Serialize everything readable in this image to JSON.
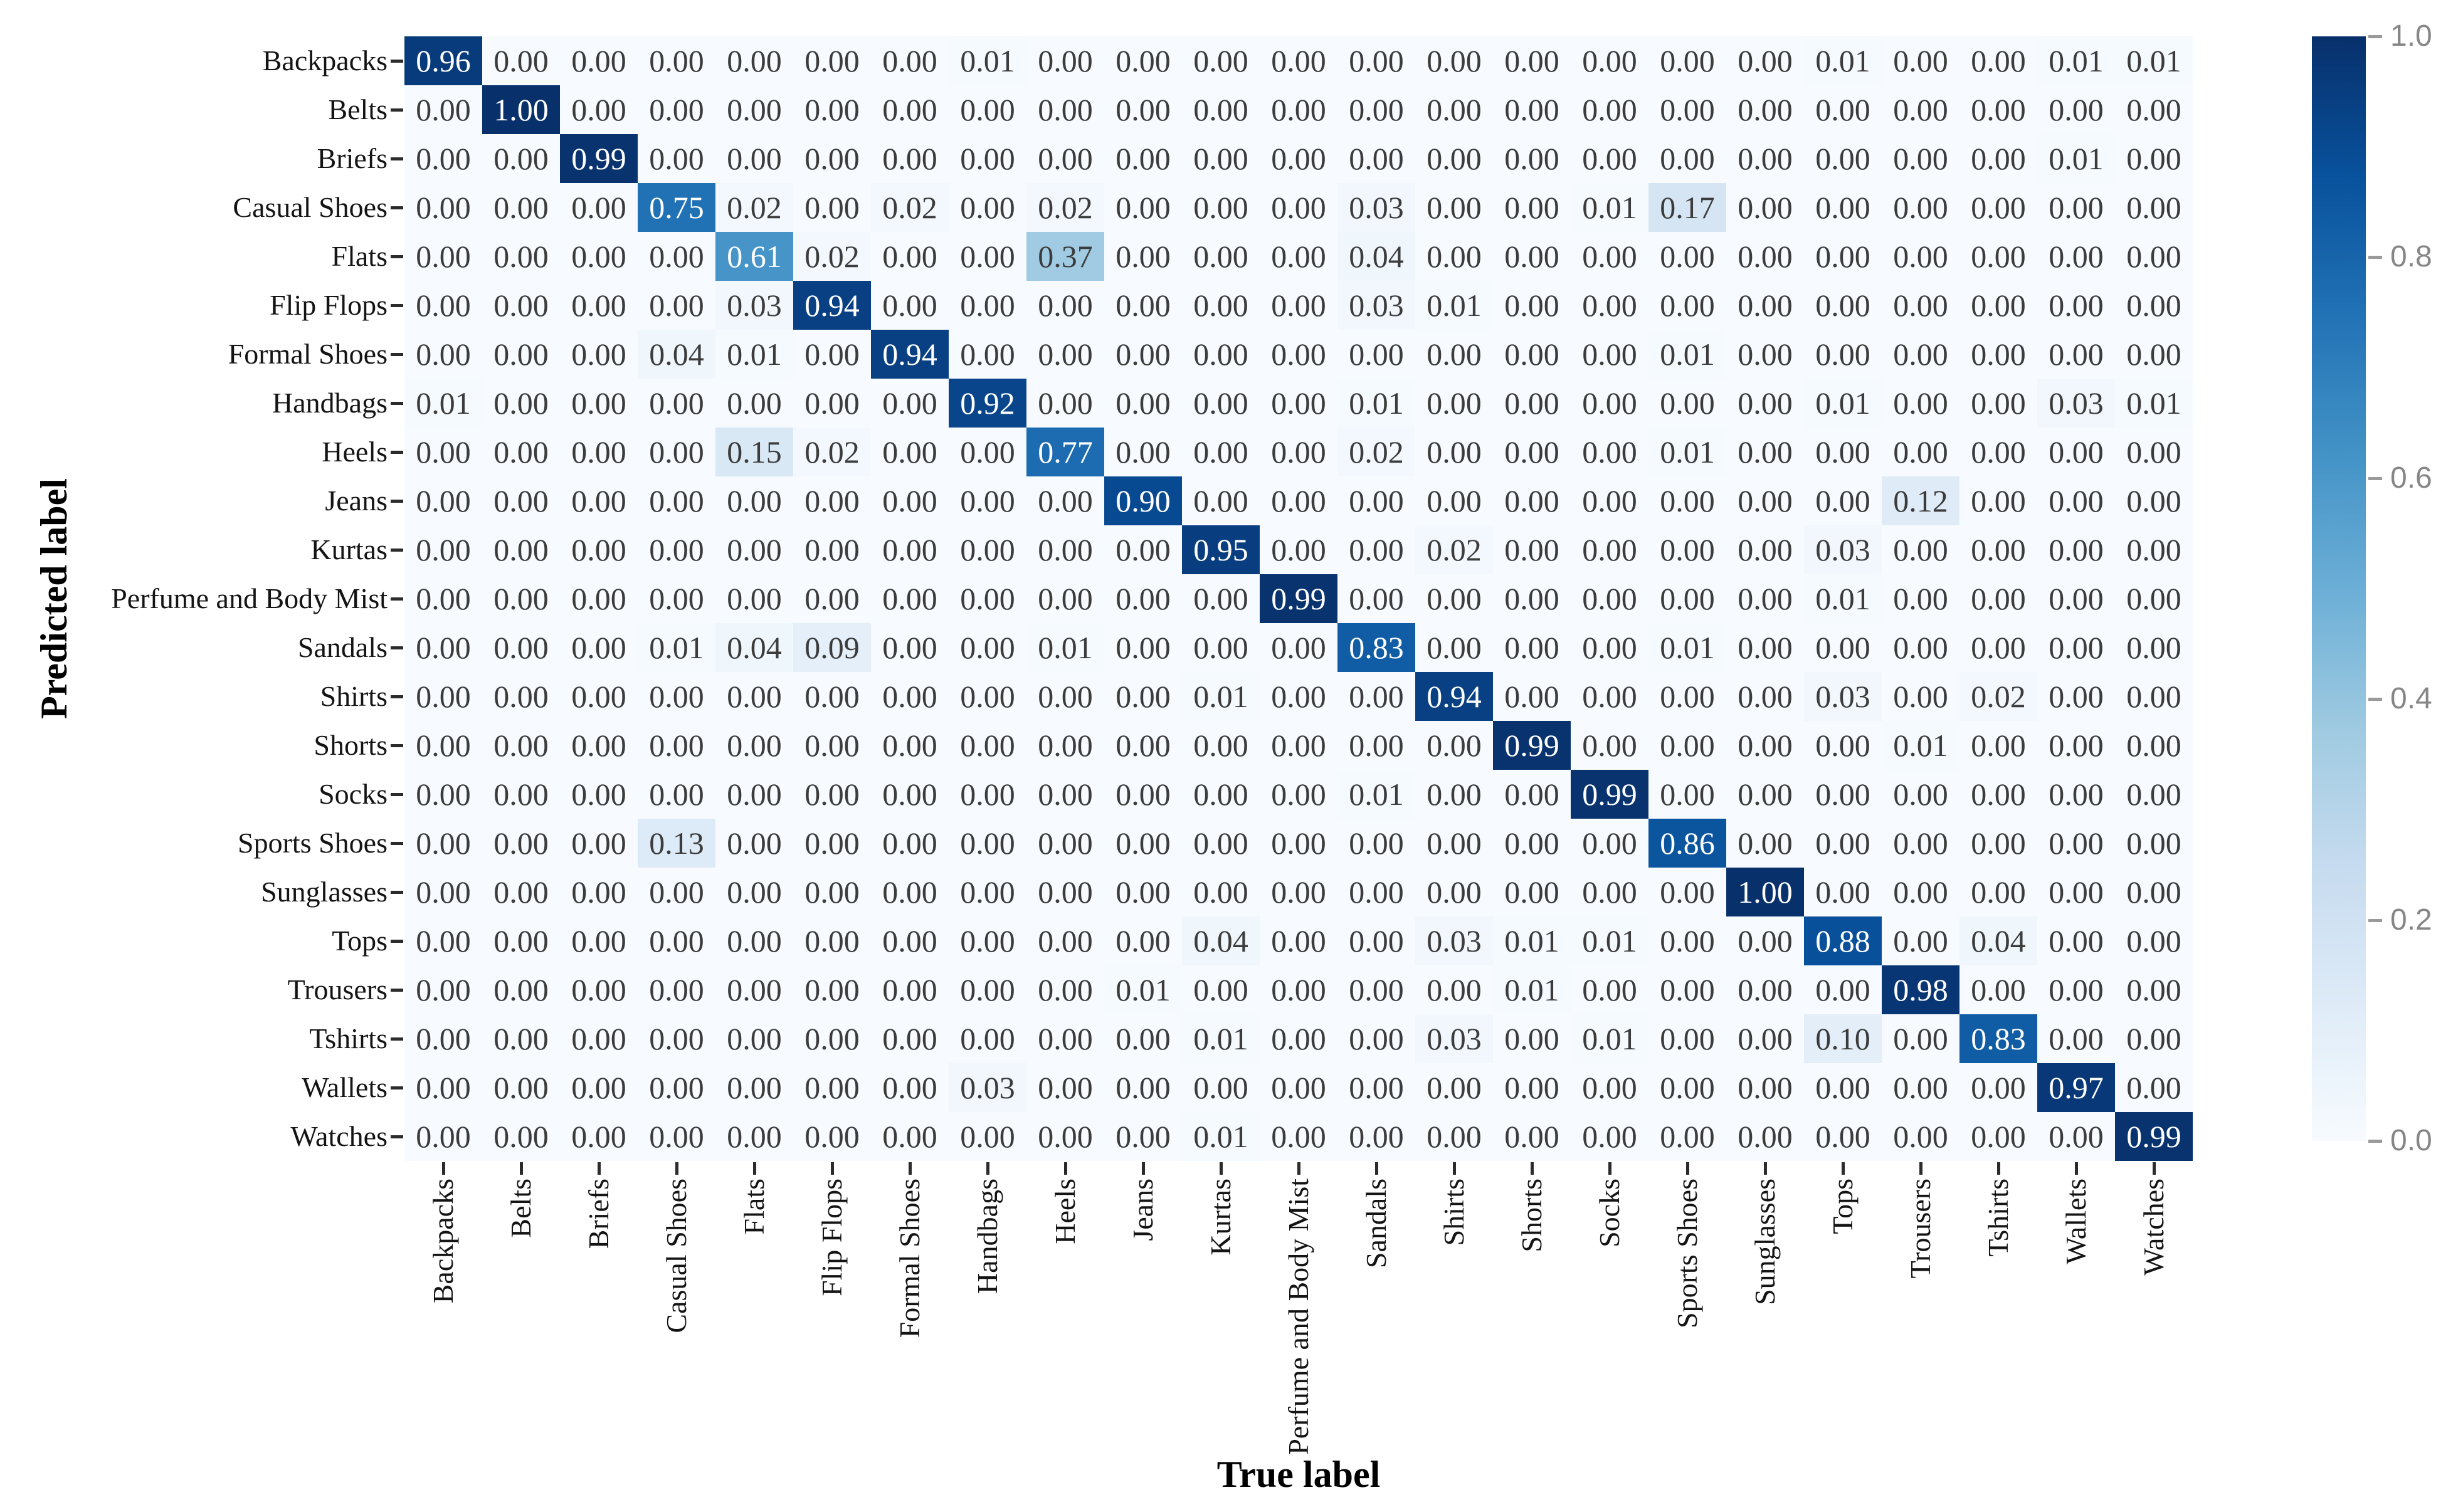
{
  "chart_data": {
    "type": "heatmap",
    "title": "",
    "xlabel": "True label",
    "ylabel": "Predicted label",
    "x_labels": [
      "Backpacks",
      "Belts",
      "Briefs",
      "Casual Shoes",
      "Flats",
      "Flip Flops",
      "Formal Shoes",
      "Handbags",
      "Heels",
      "Jeans",
      "Kurtas",
      "Perfume and Body Mist",
      "Sandals",
      "Shirts",
      "Shorts",
      "Socks",
      "Sports Shoes",
      "Sunglasses",
      "Tops",
      "Trousers",
      "Tshirts",
      "Wallets",
      "Watches"
    ],
    "y_labels": [
      "Backpacks",
      "Belts",
      "Briefs",
      "Casual Shoes",
      "Flats",
      "Flip Flops",
      "Formal Shoes",
      "Handbags",
      "Heels",
      "Jeans",
      "Kurtas",
      "Perfume and Body Mist",
      "Sandals",
      "Shirts",
      "Shorts",
      "Socks",
      "Sports Shoes",
      "Sunglasses",
      "Tops",
      "Trousers",
      "Tshirts",
      "Wallets",
      "Watches"
    ],
    "matrix": [
      [
        0.96,
        0.0,
        0.0,
        0.0,
        0.0,
        0.0,
        0.0,
        0.01,
        0.0,
        0.0,
        0.0,
        0.0,
        0.0,
        0.0,
        0.0,
        0.0,
        0.0,
        0.0,
        0.01,
        0.0,
        0.0,
        0.01,
        0.01
      ],
      [
        0.0,
        1.0,
        0.0,
        0.0,
        0.0,
        0.0,
        0.0,
        0.0,
        0.0,
        0.0,
        0.0,
        0.0,
        0.0,
        0.0,
        0.0,
        0.0,
        0.0,
        0.0,
        0.0,
        0.0,
        0.0,
        0.0,
        0.0
      ],
      [
        0.0,
        0.0,
        0.99,
        0.0,
        0.0,
        0.0,
        0.0,
        0.0,
        0.0,
        0.0,
        0.0,
        0.0,
        0.0,
        0.0,
        0.0,
        0.0,
        0.0,
        0.0,
        0.0,
        0.0,
        0.0,
        0.01,
        0.0
      ],
      [
        0.0,
        0.0,
        0.0,
        0.75,
        0.02,
        0.0,
        0.02,
        0.0,
        0.02,
        0.0,
        0.0,
        0.0,
        0.03,
        0.0,
        0.0,
        0.01,
        0.17,
        0.0,
        0.0,
        0.0,
        0.0,
        0.0,
        0.0
      ],
      [
        0.0,
        0.0,
        0.0,
        0.0,
        0.61,
        0.02,
        0.0,
        0.0,
        0.37,
        0.0,
        0.0,
        0.0,
        0.04,
        0.0,
        0.0,
        0.0,
        0.0,
        0.0,
        0.0,
        0.0,
        0.0,
        0.0,
        0.0
      ],
      [
        0.0,
        0.0,
        0.0,
        0.0,
        0.03,
        0.94,
        0.0,
        0.0,
        0.0,
        0.0,
        0.0,
        0.0,
        0.03,
        0.01,
        0.0,
        0.0,
        0.0,
        0.0,
        0.0,
        0.0,
        0.0,
        0.0,
        0.0
      ],
      [
        0.0,
        0.0,
        0.0,
        0.04,
        0.01,
        0.0,
        0.94,
        0.0,
        0.0,
        0.0,
        0.0,
        0.0,
        0.0,
        0.0,
        0.0,
        0.0,
        0.01,
        0.0,
        0.0,
        0.0,
        0.0,
        0.0,
        0.0
      ],
      [
        0.01,
        0.0,
        0.0,
        0.0,
        0.0,
        0.0,
        0.0,
        0.92,
        0.0,
        0.0,
        0.0,
        0.0,
        0.01,
        0.0,
        0.0,
        0.0,
        0.0,
        0.0,
        0.01,
        0.0,
        0.0,
        0.03,
        0.01
      ],
      [
        0.0,
        0.0,
        0.0,
        0.0,
        0.15,
        0.02,
        0.0,
        0.0,
        0.77,
        0.0,
        0.0,
        0.0,
        0.02,
        0.0,
        0.0,
        0.0,
        0.01,
        0.0,
        0.0,
        0.0,
        0.0,
        0.0,
        0.0
      ],
      [
        0.0,
        0.0,
        0.0,
        0.0,
        0.0,
        0.0,
        0.0,
        0.0,
        0.0,
        0.9,
        0.0,
        0.0,
        0.0,
        0.0,
        0.0,
        0.0,
        0.0,
        0.0,
        0.0,
        0.12,
        0.0,
        0.0,
        0.0
      ],
      [
        0.0,
        0.0,
        0.0,
        0.0,
        0.0,
        0.0,
        0.0,
        0.0,
        0.0,
        0.0,
        0.95,
        0.0,
        0.0,
        0.02,
        0.0,
        0.0,
        0.0,
        0.0,
        0.03,
        0.0,
        0.0,
        0.0,
        0.0
      ],
      [
        0.0,
        0.0,
        0.0,
        0.0,
        0.0,
        0.0,
        0.0,
        0.0,
        0.0,
        0.0,
        0.0,
        0.99,
        0.0,
        0.0,
        0.0,
        0.0,
        0.0,
        0.0,
        0.01,
        0.0,
        0.0,
        0.0,
        0.0
      ],
      [
        0.0,
        0.0,
        0.0,
        0.01,
        0.04,
        0.09,
        0.0,
        0.0,
        0.01,
        0.0,
        0.0,
        0.0,
        0.83,
        0.0,
        0.0,
        0.0,
        0.01,
        0.0,
        0.0,
        0.0,
        0.0,
        0.0,
        0.0
      ],
      [
        0.0,
        0.0,
        0.0,
        0.0,
        0.0,
        0.0,
        0.0,
        0.0,
        0.0,
        0.0,
        0.01,
        0.0,
        0.0,
        0.94,
        0.0,
        0.0,
        0.0,
        0.0,
        0.03,
        0.0,
        0.02,
        0.0,
        0.0
      ],
      [
        0.0,
        0.0,
        0.0,
        0.0,
        0.0,
        0.0,
        0.0,
        0.0,
        0.0,
        0.0,
        0.0,
        0.0,
        0.0,
        0.0,
        0.99,
        0.0,
        0.0,
        0.0,
        0.0,
        0.01,
        0.0,
        0.0,
        0.0
      ],
      [
        0.0,
        0.0,
        0.0,
        0.0,
        0.0,
        0.0,
        0.0,
        0.0,
        0.0,
        0.0,
        0.0,
        0.0,
        0.01,
        0.0,
        0.0,
        0.99,
        0.0,
        0.0,
        0.0,
        0.0,
        0.0,
        0.0,
        0.0
      ],
      [
        0.0,
        0.0,
        0.0,
        0.13,
        0.0,
        0.0,
        0.0,
        0.0,
        0.0,
        0.0,
        0.0,
        0.0,
        0.0,
        0.0,
        0.0,
        0.0,
        0.86,
        0.0,
        0.0,
        0.0,
        0.0,
        0.0,
        0.0
      ],
      [
        0.0,
        0.0,
        0.0,
        0.0,
        0.0,
        0.0,
        0.0,
        0.0,
        0.0,
        0.0,
        0.0,
        0.0,
        0.0,
        0.0,
        0.0,
        0.0,
        0.0,
        1.0,
        0.0,
        0.0,
        0.0,
        0.0,
        0.0
      ],
      [
        0.0,
        0.0,
        0.0,
        0.0,
        0.0,
        0.0,
        0.0,
        0.0,
        0.0,
        0.0,
        0.04,
        0.0,
        0.0,
        0.03,
        0.01,
        0.01,
        0.0,
        0.0,
        0.88,
        0.0,
        0.04,
        0.0,
        0.0
      ],
      [
        0.0,
        0.0,
        0.0,
        0.0,
        0.0,
        0.0,
        0.0,
        0.0,
        0.0,
        0.01,
        0.0,
        0.0,
        0.0,
        0.0,
        0.01,
        0.0,
        0.0,
        0.0,
        0.0,
        0.98,
        0.0,
        0.0,
        0.0
      ],
      [
        0.0,
        0.0,
        0.0,
        0.0,
        0.0,
        0.0,
        0.0,
        0.0,
        0.0,
        0.0,
        0.01,
        0.0,
        0.0,
        0.03,
        0.0,
        0.01,
        0.0,
        0.0,
        0.1,
        0.0,
        0.83,
        0.0,
        0.0
      ],
      [
        0.0,
        0.0,
        0.0,
        0.0,
        0.0,
        0.0,
        0.0,
        0.03,
        0.0,
        0.0,
        0.0,
        0.0,
        0.0,
        0.0,
        0.0,
        0.0,
        0.0,
        0.0,
        0.0,
        0.0,
        0.0,
        0.97,
        0.0
      ],
      [
        0.0,
        0.0,
        0.0,
        0.0,
        0.0,
        0.0,
        0.0,
        0.0,
        0.0,
        0.0,
        0.01,
        0.0,
        0.0,
        0.0,
        0.0,
        0.0,
        0.0,
        0.0,
        0.0,
        0.0,
        0.0,
        0.0,
        0.99
      ]
    ],
    "value_format": "two_decimals",
    "colormap": "Blues",
    "vmin": 0.0,
    "vmax": 1.0,
    "grid": false,
    "legend_position": "right-colorbar",
    "colorbar_ticks": [
      "1.0",
      "0.8",
      "0.6",
      "0.4",
      "0.2",
      "0.0"
    ],
    "colors": {
      "cmap_low": "#f7fbff",
      "cmap_high": "#08306b",
      "cell_text_dark": "#3c3c3c",
      "cell_text_light": "#ffffff",
      "tick_label": "#141414",
      "colorbar_label": "#868686"
    }
  }
}
